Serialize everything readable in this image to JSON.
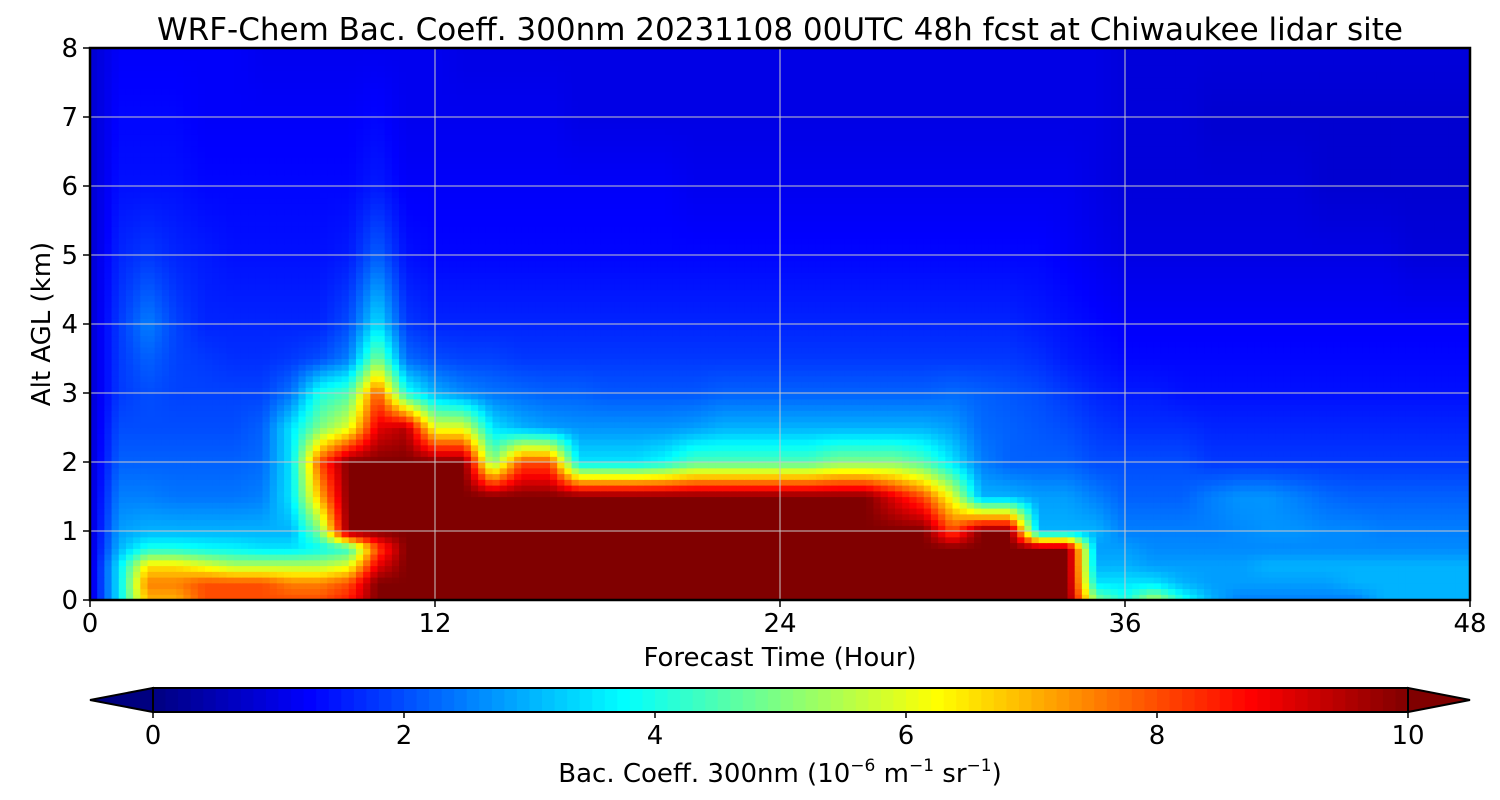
{
  "chart_data": {
    "type": "heatmap",
    "title": "WRF-Chem Bac. Coeff. 300nm  20231108 00UTC 48h fcst at Chiwaukee lidar site",
    "xlabel": "Forecast Time (Hour)",
    "ylabel": "Alt AGL (km)",
    "xlim": [
      0,
      48
    ],
    "ylim": [
      0,
      8
    ],
    "xticks": [
      "0",
      "12",
      "24",
      "36",
      "48"
    ],
    "yticks": [
      "0",
      "1",
      "2",
      "3",
      "4",
      "5",
      "6",
      "7",
      "8"
    ],
    "grid": true,
    "colormap": "jet",
    "colorbar": {
      "orientation": "horizontal",
      "position": "bottom",
      "range": [
        0,
        10
      ],
      "extend": "both",
      "ticks": [
        "0",
        "2",
        "4",
        "6",
        "8",
        "10"
      ],
      "label_main": "Bac. Coeff. 300nm  (10",
      "label_exp1": "−6",
      "label_mid": " m",
      "label_exp2": "−1",
      "label_mid2": " sr",
      "label_exp3": "−1",
      "label_end": ")"
    },
    "x": [
      0,
      1,
      2,
      3,
      4,
      5,
      6,
      7,
      8,
      9,
      10,
      11,
      12,
      13,
      14,
      15,
      16,
      17,
      18,
      19,
      20,
      21,
      22,
      23,
      24,
      25,
      26,
      27,
      28,
      29,
      30,
      31,
      32,
      33,
      34,
      35,
      36,
      37,
      38,
      39,
      40,
      41,
      42,
      43,
      44,
      45,
      46,
      47,
      48
    ],
    "y": [
      0.0,
      0.25,
      0.5,
      0.75,
      1.0,
      1.5,
      2.0,
      2.5,
      3.0,
      3.5,
      4.0,
      5.0,
      6.0,
      7.0,
      8.0
    ],
    "z": [
      [
        0.8,
        3.5,
        7,
        7,
        8,
        8,
        8,
        8,
        8,
        8.5,
        10,
        10,
        10,
        10,
        10,
        10,
        10,
        10,
        10,
        10,
        10,
        10,
        10,
        10,
        10,
        10,
        10,
        10,
        10,
        10,
        10,
        10,
        10,
        10,
        10,
        5,
        4,
        5.5,
        4,
        3,
        2.5,
        2.5,
        2.5,
        2.5,
        2.5,
        3,
        3,
        3,
        3
      ],
      [
        0.8,
        3.5,
        7.5,
        7.5,
        8,
        8,
        8,
        7.5,
        7.5,
        8,
        10,
        10,
        10,
        10,
        10,
        10,
        10,
        10,
        10,
        10,
        10,
        10,
        10,
        10,
        10,
        10,
        10,
        10,
        10,
        10,
        10,
        10,
        10,
        10,
        10,
        3.5,
        3.5,
        3.5,
        3,
        2.8,
        2.8,
        2.8,
        2.8,
        2.8,
        3,
        3,
        3,
        3,
        3
      ],
      [
        0.8,
        3.5,
        6.5,
        6.5,
        6,
        5.5,
        5.5,
        5.5,
        5.5,
        6,
        9,
        10,
        10,
        10,
        10,
        10,
        10,
        10,
        10,
        10,
        10,
        10,
        10,
        10,
        10,
        10,
        10,
        10,
        10,
        10,
        10,
        10,
        10,
        10,
        10,
        3,
        3,
        2.8,
        2.8,
        2.8,
        2.8,
        3,
        3,
        3,
        3,
        3,
        3,
        3,
        3
      ],
      [
        0.8,
        3,
        4,
        4,
        3.8,
        3.7,
        3.5,
        3.5,
        3.8,
        4.2,
        8,
        10,
        10,
        10,
        10,
        10,
        10,
        10,
        10,
        10,
        10,
        10,
        10,
        10,
        10,
        10,
        10,
        10,
        10,
        10,
        10,
        10,
        10,
        10,
        10,
        2.8,
        2.8,
        2.6,
        2.6,
        2.6,
        2.6,
        2.6,
        2.6,
        2.6,
        2.6,
        2.6,
        2.6,
        2.6,
        2.6
      ],
      [
        0.8,
        2.8,
        3,
        3,
        3,
        3,
        3,
        3,
        5,
        10,
        10,
        10,
        10,
        10,
        10,
        10,
        10,
        10,
        10,
        10,
        10,
        10,
        10,
        10,
        10,
        10,
        10,
        10,
        10,
        10,
        8,
        10,
        10,
        3,
        3,
        3,
        2.5,
        2.5,
        2.5,
        2.5,
        2.6,
        2.7,
        2.7,
        2.6,
        2.6,
        2.5,
        2.5,
        2.5,
        2.5
      ],
      [
        0.8,
        2.5,
        2.5,
        2.4,
        2.4,
        2.4,
        2.5,
        3.5,
        7,
        10,
        10,
        10,
        10,
        10,
        10,
        10,
        10,
        10,
        10,
        10,
        10,
        10,
        10,
        10,
        10,
        10,
        10,
        10,
        9,
        8,
        6,
        3,
        3,
        2.8,
        2.8,
        2.5,
        2.2,
        2.2,
        2.2,
        2.5,
        2.7,
        2.7,
        2.5,
        2.3,
        2.2,
        2.2,
        2.2,
        2.2,
        2.2
      ],
      [
        0.8,
        2.2,
        2.2,
        2.2,
        2.2,
        2.2,
        2.3,
        3.5,
        8,
        10,
        10,
        10,
        10,
        10,
        5,
        8,
        8,
        3.5,
        3.5,
        3.5,
        3.8,
        4.5,
        4.5,
        4.5,
        4.5,
        4.5,
        5,
        5,
        5,
        4.5,
        3.5,
        2.5,
        2.2,
        2.2,
        2.2,
        2,
        2,
        2,
        2,
        1.8,
        1.8,
        1.8,
        1.8,
        1.8,
        1.8,
        1.8,
        1.8,
        1.8,
        1.8
      ],
      [
        0.8,
        2,
        2,
        2,
        2,
        2,
        2.2,
        3.5,
        5,
        6,
        9,
        9.5,
        6,
        6,
        3.5,
        3,
        2.8,
        2.7,
        2.7,
        2.7,
        2.7,
        2.8,
        3,
        3,
        3,
        3,
        3,
        3,
        3,
        3,
        2.8,
        2.3,
        2.2,
        2.1,
        2,
        1.8,
        1.7,
        1.7,
        1.7,
        1.6,
        1.6,
        1.6,
        1.6,
        1.6,
        1.6,
        1.6,
        1.6,
        1.6,
        1.6
      ],
      [
        0.8,
        1.8,
        2,
        1.9,
        1.9,
        1.9,
        1.9,
        2.4,
        4,
        4.5,
        8,
        4,
        3,
        2.6,
        2.4,
        2.3,
        2.2,
        2.2,
        2.1,
        2.1,
        2.1,
        2.1,
        2.2,
        2.2,
        2.2,
        2.2,
        2.2,
        2.2,
        2.2,
        2.2,
        2.3,
        2.2,
        2.1,
        2,
        1.8,
        1.6,
        1.5,
        1.5,
        1.4,
        1.4,
        1.4,
        1.4,
        1.4,
        1.4,
        1.4,
        1.4,
        1.4,
        1.4,
        1.4
      ],
      [
        0.8,
        1.8,
        2.2,
        1.9,
        1.8,
        1.7,
        1.7,
        1.8,
        2,
        2.5,
        5,
        2.3,
        2,
        1.9,
        1.9,
        1.8,
        1.8,
        1.8,
        1.8,
        1.8,
        1.8,
        1.8,
        1.8,
        1.8,
        1.8,
        1.8,
        1.8,
        1.8,
        1.8,
        1.8,
        1.8,
        1.8,
        1.8,
        1.7,
        1.5,
        1.4,
        1.3,
        1.3,
        1.3,
        1.3,
        1.3,
        1.3,
        1.3,
        1.3,
        1.3,
        1.3,
        1.3,
        1.3,
        1.3
      ],
      [
        0.8,
        1.8,
        2.5,
        1.9,
        1.6,
        1.6,
        1.6,
        1.6,
        1.6,
        2,
        3.5,
        1.8,
        1.6,
        1.6,
        1.6,
        1.6,
        1.6,
        1.6,
        1.6,
        1.6,
        1.6,
        1.6,
        1.6,
        1.6,
        1.6,
        1.6,
        1.6,
        1.6,
        1.6,
        1.6,
        1.6,
        1.6,
        1.6,
        1.5,
        1.4,
        1.3,
        1.2,
        1.2,
        1.2,
        1.2,
        1.2,
        1.2,
        1.2,
        1.2,
        1.2,
        1.2,
        1.2,
        1.2,
        1.2
      ],
      [
        0.8,
        1.6,
        1.8,
        1.6,
        1.5,
        1.4,
        1.4,
        1.4,
        1.4,
        1.5,
        2.2,
        1.4,
        1.3,
        1.3,
        1.3,
        1.3,
        1.3,
        1.3,
        1.3,
        1.3,
        1.3,
        1.3,
        1.3,
        1.3,
        1.3,
        1.3,
        1.3,
        1.3,
        1.3,
        1.3,
        1.3,
        1.3,
        1.3,
        1.3,
        1.2,
        1.1,
        1,
        1,
        1,
        1,
        1,
        1,
        1,
        1,
        1,
        1,
        0.9,
        0.9,
        0.9
      ],
      [
        0.8,
        1.4,
        1.4,
        1.4,
        1.3,
        1.3,
        1.3,
        1.3,
        1.3,
        1.3,
        1.5,
        1.2,
        1.2,
        1.2,
        1.2,
        1.2,
        1.2,
        1.2,
        1.2,
        1.2,
        1.2,
        1.1,
        1.1,
        1.1,
        1.1,
        1.1,
        1.1,
        1.1,
        1.1,
        1.1,
        1.1,
        1.1,
        1.1,
        1.1,
        1.1,
        1,
        0.9,
        0.9,
        0.9,
        0.9,
        0.9,
        0.9,
        0.9,
        0.8,
        0.8,
        0.8,
        0.8,
        0.8,
        0.8
      ],
      [
        0.8,
        1.3,
        1.3,
        1.3,
        1.2,
        1.2,
        1.2,
        1.2,
        1.2,
        1.2,
        1.3,
        1.1,
        1.1,
        1.1,
        1.1,
        1.1,
        1.1,
        1,
        1,
        1,
        1,
        1,
        1,
        1,
        1,
        1,
        1,
        1,
        1,
        1,
        1,
        1,
        1,
        1,
        1,
        1,
        0.9,
        0.9,
        0.9,
        0.8,
        0.8,
        0.8,
        0.8,
        0.8,
        0.8,
        0.8,
        0.8,
        0.8,
        0.8
      ],
      [
        0.8,
        1.2,
        1.2,
        1.2,
        1.2,
        1.2,
        1.1,
        1.1,
        1.1,
        1.1,
        1.1,
        1.1,
        1.1,
        1,
        1,
        1,
        1,
        1,
        1,
        1,
        1,
        1,
        1,
        1,
        1,
        1,
        1,
        1,
        1,
        1,
        1,
        1,
        1,
        1,
        1,
        1,
        0.9,
        0.9,
        0.9,
        0.9,
        0.9,
        0.9,
        0.9,
        0.9,
        0.9,
        0.9,
        0.9,
        0.9,
        0.9
      ]
    ]
  }
}
